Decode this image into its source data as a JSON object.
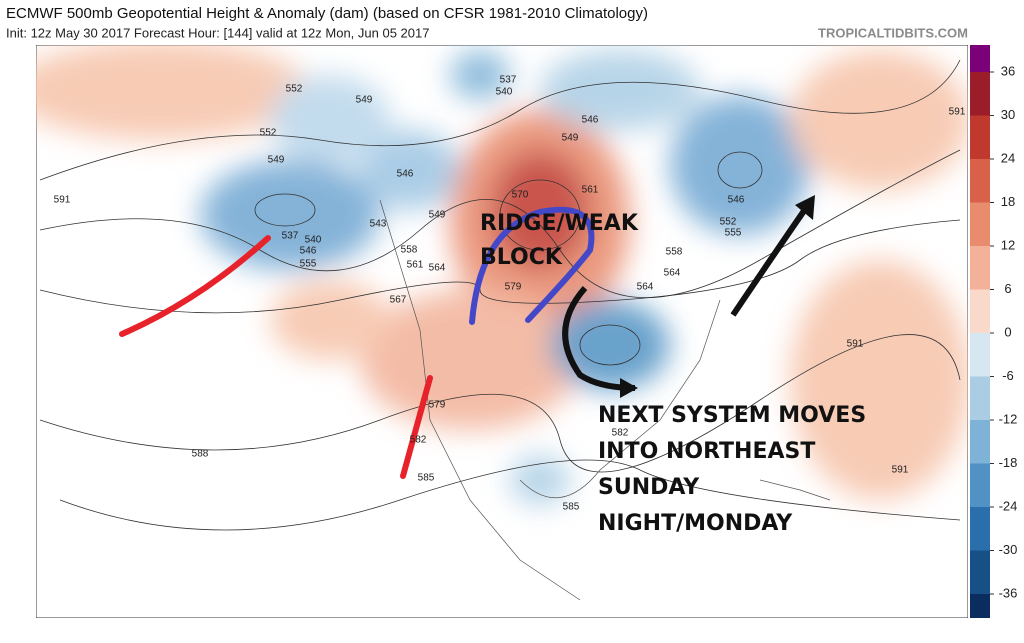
{
  "header": {
    "title": "ECMWF 500mb Geopotential Height & Anomaly (dam) (based on CFSR 1981-2010 Climatology)",
    "subtitle": "Init: 12z May 30 2017   Forecast Hour: [144]   valid at 12z Mon, Jun 05 2017",
    "credit": "TROPICALTIDBITS.COM"
  },
  "annotations": {
    "ridge": [
      "RIDGE/WEAK",
      "BLOCK"
    ],
    "system": [
      "NEXT SYSTEM MOVES",
      "INTO NORTHEAST",
      "SUNDAY",
      "NIGHT/MONDAY"
    ]
  },
  "contour_labels": [
    552,
    549,
    552,
    549,
    591,
    537,
    540,
    546,
    555,
    543,
    549,
    546,
    558,
    561,
    564,
    567,
    579,
    582,
    585,
    588,
    537,
    540,
    549,
    546,
    561,
    570,
    579,
    558,
    564,
    564,
    546,
    552,
    555,
    591,
    591,
    591,
    582,
    585
  ],
  "colorbar": {
    "ticks": [
      36,
      30,
      24,
      18,
      12,
      6,
      0,
      -6,
      -12,
      -18,
      -24,
      -30,
      -36
    ],
    "lim": [
      -36,
      36
    ],
    "colors": [
      "#9b1d2a",
      "#c0392f",
      "#d9614a",
      "#e98b6d",
      "#f2b198",
      "#f9d9c9",
      "#d6e7f1",
      "#aacde4",
      "#7eb2d7",
      "#4f92c3",
      "#2a6fab",
      "#174f87"
    ]
  }
}
